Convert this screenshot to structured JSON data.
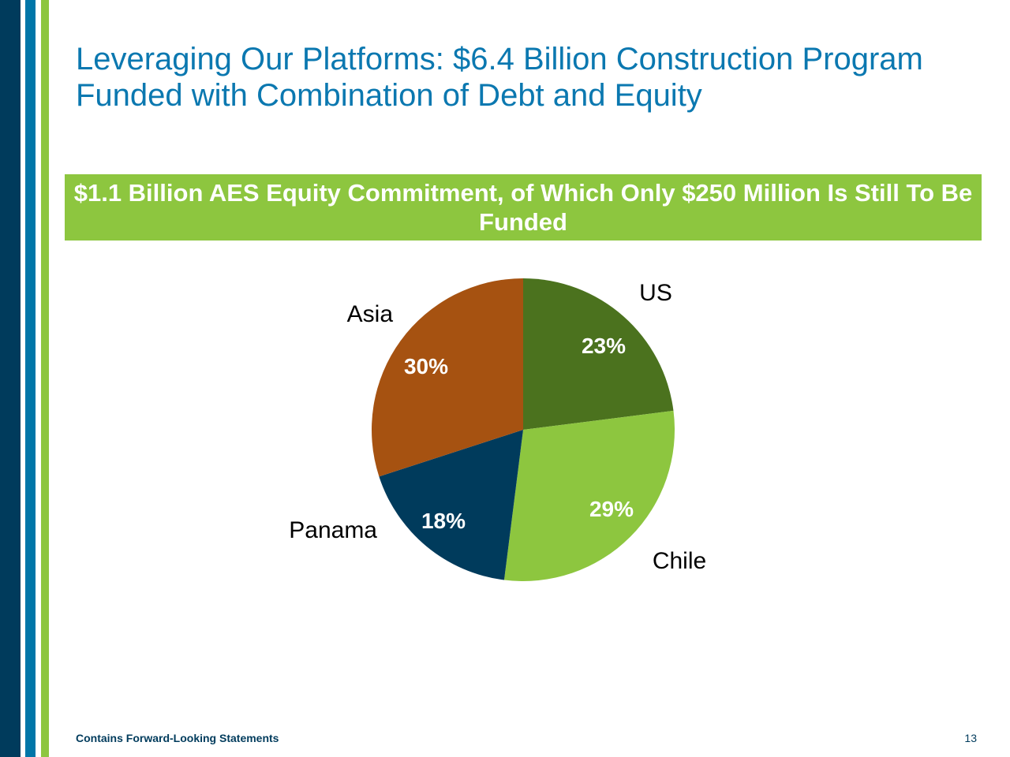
{
  "slide": {
    "title": "Leveraging Our Platforms: $6.4 Billion Construction Program Funded with Combination of Debt and Equity",
    "banner": "$1.1 Billion AES Equity Commitment, of Which Only $250 Million Is Still To Be Funded",
    "footer_note": "Contains Forward-Looking Statements",
    "page_number": "13"
  },
  "colors": {
    "title": "#0b78b0",
    "banner_bg": "#8dc63f",
    "us": "#4b721e",
    "chile": "#8dc63f",
    "panama": "#003b5c",
    "asia": "#a65211"
  },
  "chart_data": {
    "type": "pie",
    "categories": [
      "US",
      "Chile",
      "Panama",
      "Asia"
    ],
    "values": [
      23,
      29,
      18,
      30
    ],
    "value_labels": [
      "23%",
      "29%",
      "18%",
      "30%"
    ],
    "start": "12 o'clock",
    "direction": "clockwise"
  }
}
